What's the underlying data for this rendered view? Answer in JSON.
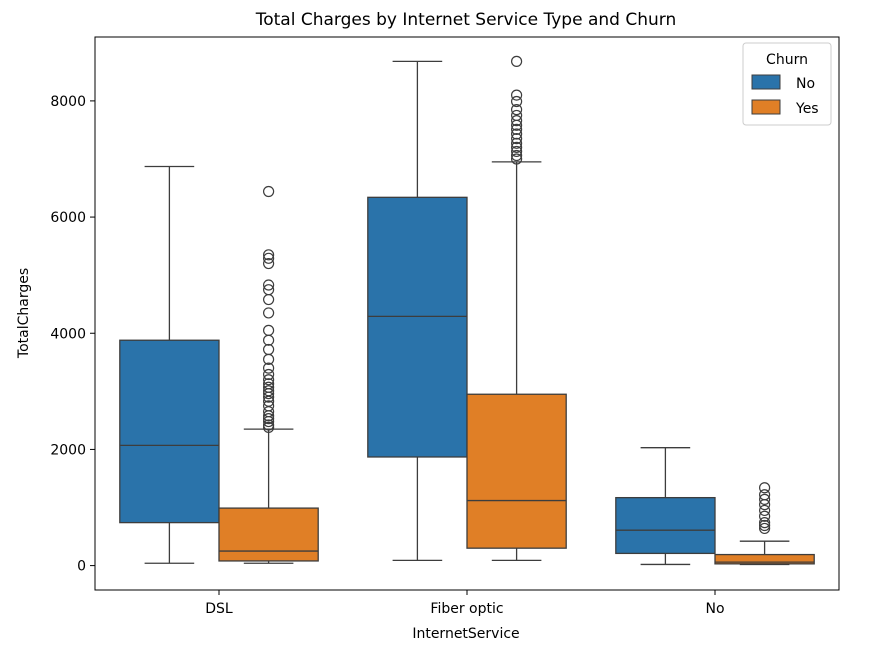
{
  "chart_data": {
    "type": "box",
    "title": "Total Charges by Internet Service Type and Churn",
    "xlabel": "InternetService",
    "ylabel": "TotalCharges",
    "categories": [
      "DSL",
      "Fiber optic",
      "No"
    ],
    "ylim": [
      -420,
      9100
    ],
    "yticks": [
      0,
      2000,
      4000,
      6000,
      8000
    ],
    "grid": false,
    "legend": {
      "title": "Churn",
      "placement": "top-right"
    },
    "series": [
      {
        "name": "No",
        "color": "#2a73aa",
        "boxes": [
          {
            "category": "DSL",
            "whisker_low": 40,
            "q1": 740,
            "median": 2070,
            "q3": 3880,
            "whisker_high": 6870,
            "outliers": []
          },
          {
            "category": "Fiber optic",
            "whisker_low": 90,
            "q1": 1870,
            "median": 4290,
            "q3": 6340,
            "whisker_high": 8680,
            "outliers": []
          },
          {
            "category": "No",
            "whisker_low": 20,
            "q1": 210,
            "median": 610,
            "q3": 1170,
            "whisker_high": 2030,
            "outliers": []
          }
        ]
      },
      {
        "name": "Yes",
        "color": "#e07f26",
        "boxes": [
          {
            "category": "DSL",
            "whisker_low": 40,
            "q1": 80,
            "median": 250,
            "q3": 990,
            "whisker_high": 2350,
            "outliers": [
              2380,
              2420,
              2480,
              2530,
              2580,
              2650,
              2750,
              2830,
              2900,
              2960,
              3010,
              3070,
              3130,
              3200,
              3290,
              3400,
              3550,
              3720,
              3880,
              4050,
              4350,
              4580,
              4750,
              4830,
              5200,
              5290,
              5350,
              6440
            ]
          },
          {
            "category": "Fiber optic",
            "whisker_low": 90,
            "q1": 300,
            "median": 1120,
            "q3": 2950,
            "whisker_high": 6950,
            "outliers": [
              7000,
              7060,
              7130,
              7200,
              7270,
              7350,
              7430,
              7510,
              7580,
              7660,
              7750,
              7850,
              7990,
              8100,
              8680
            ]
          },
          {
            "category": "No",
            "whisker_low": 20,
            "q1": 30,
            "median": 60,
            "q3": 190,
            "whisker_high": 420,
            "outliers": [
              640,
              690,
              740,
              850,
              950,
              1050,
              1140,
              1220,
              1340
            ]
          }
        ]
      }
    ]
  }
}
